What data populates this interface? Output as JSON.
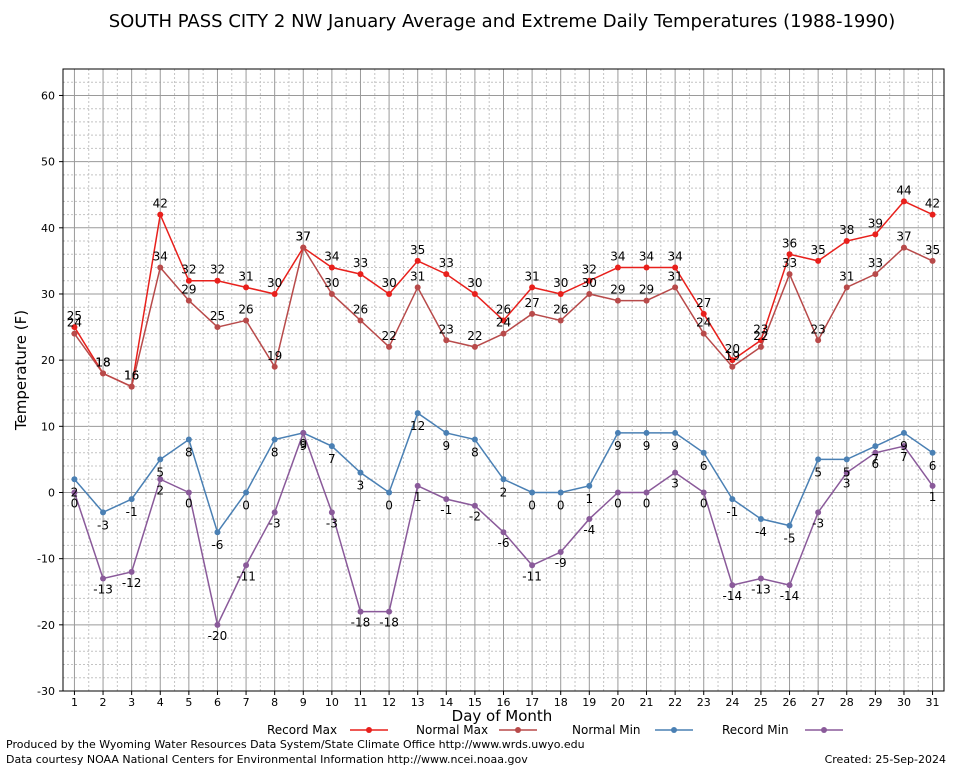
{
  "chart_data": {
    "type": "line",
    "title": "SOUTH PASS CITY 2 NW January Average and Extreme Daily Temperatures (1988-1990)",
    "xlabel": "Day of Month",
    "ylabel": "Temperature (F)",
    "xlim": [
      0.6,
      31.4
    ],
    "ylim": [
      -30,
      64
    ],
    "yticks": [
      -30,
      -20,
      -10,
      0,
      10,
      20,
      30,
      40,
      50,
      60
    ],
    "x": [
      1,
      2,
      3,
      4,
      5,
      6,
      7,
      8,
      9,
      10,
      11,
      12,
      13,
      14,
      15,
      16,
      17,
      18,
      19,
      20,
      21,
      22,
      23,
      24,
      25,
      26,
      27,
      28,
      29,
      30,
      31
    ],
    "grid": true,
    "legend_position": "bottom",
    "series": [
      {
        "name": "Record Max",
        "color": "#e8201c",
        "values": [
          25,
          18,
          16,
          42,
          32,
          32,
          31,
          30,
          37,
          34,
          33,
          30,
          35,
          33,
          30,
          26,
          31,
          30,
          32,
          34,
          34,
          34,
          27,
          20,
          23,
          36,
          35,
          38,
          39,
          44,
          42
        ]
      },
      {
        "name": "Normal Max",
        "color": "#b84a4a",
        "values": [
          24,
          18,
          16,
          34,
          29,
          25,
          26,
          19,
          37,
          30,
          26,
          22,
          31,
          23,
          22,
          24,
          27,
          26,
          30,
          29,
          29,
          31,
          24,
          19,
          22,
          33,
          23,
          31,
          33,
          37,
          35
        ]
      },
      {
        "name": "Normal Min",
        "color": "#4a80b4",
        "values": [
          2,
          -3,
          -1,
          5,
          8,
          -6,
          0,
          8,
          9,
          7,
          3,
          0,
          12,
          9,
          8,
          2,
          0,
          0,
          1,
          9,
          9,
          9,
          6,
          -1,
          -4,
          -5,
          5,
          5,
          7,
          9,
          6
        ]
      },
      {
        "name": "Record Min",
        "color": "#8a5a9a",
        "values": [
          0,
          -13,
          -12,
          2,
          0,
          -20,
          -11,
          -3,
          9,
          -3,
          -18,
          -18,
          1,
          -1,
          -2,
          -6,
          -11,
          -9,
          -4,
          0,
          0,
          3,
          0,
          -14,
          -13,
          -14,
          -3,
          3,
          6,
          7,
          1
        ]
      }
    ]
  },
  "footer": {
    "produced_by": "Produced by the Wyoming Water Resources Data System/State Climate Office http://www.wrds.uwyo.edu",
    "courtesy": "Data courtesy NOAA National Centers for Environmental Information http://www.ncei.noaa.gov",
    "created": "Created:  25-Sep-2024"
  }
}
